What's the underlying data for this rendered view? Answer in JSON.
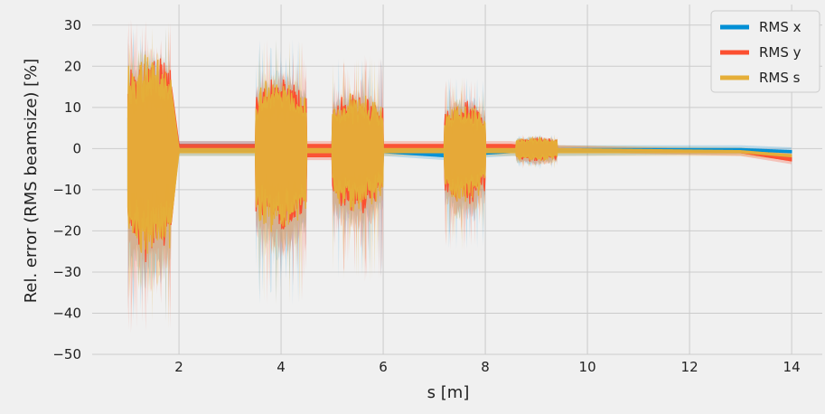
{
  "chart_data": {
    "type": "line",
    "xlabel": "s [m]",
    "ylabel": "Rel. error (RMS beamsize) [%]",
    "xlim": [
      0.3,
      14.6
    ],
    "ylim": [
      -50,
      35
    ],
    "x_ticks": [
      2,
      4,
      6,
      8,
      10,
      12,
      14
    ],
    "y_ticks": [
      -50,
      -40,
      -30,
      -20,
      -10,
      0,
      10,
      20,
      30
    ],
    "grid": true,
    "legend_position": "top-right",
    "series": [
      {
        "name": "RMS x",
        "color": "#008fd5",
        "envelope": [
          {
            "s": 1.0,
            "lo": -5,
            "hi": 2
          },
          {
            "s": 1.8,
            "lo": -10,
            "hi": 2
          },
          {
            "s": 2.0,
            "lo": -1,
            "hi": 1
          },
          {
            "s": 3.5,
            "lo": -1,
            "hi": 1
          },
          {
            "s": 4.5,
            "lo": -1,
            "hi": 0
          },
          {
            "s": 5.0,
            "lo": -1,
            "hi": 0
          },
          {
            "s": 6.0,
            "lo": -1,
            "hi": 0
          },
          {
            "s": 7.2,
            "lo": -2,
            "hi": 0
          },
          {
            "s": 8.5,
            "lo": -1,
            "hi": 0
          },
          {
            "s": 9.4,
            "lo": -1,
            "hi": 0
          },
          {
            "s": 13.0,
            "lo": -0.5,
            "hi": 0
          },
          {
            "s": 14.0,
            "lo": -1,
            "hi": -0.5
          }
        ]
      },
      {
        "name": "RMS y",
        "color": "#fc4f30",
        "envelope": [
          {
            "s": 1.0,
            "lo": -26,
            "hi": 21
          },
          {
            "s": 1.8,
            "lo": -24,
            "hi": 20
          },
          {
            "s": 2.0,
            "lo": 0,
            "hi": 1
          },
          {
            "s": 3.5,
            "lo": 0,
            "hi": 1
          },
          {
            "s": 4.5,
            "lo": -2,
            "hi": 1
          },
          {
            "s": 5.0,
            "lo": -2,
            "hi": 1
          },
          {
            "s": 6.0,
            "lo": 0,
            "hi": 1
          },
          {
            "s": 7.2,
            "lo": 0,
            "hi": 1
          },
          {
            "s": 8.5,
            "lo": 0,
            "hi": 1
          },
          {
            "s": 9.4,
            "lo": 0,
            "hi": 0
          },
          {
            "s": 13.0,
            "lo": -1,
            "hi": -1
          },
          {
            "s": 14.0,
            "lo": -3,
            "hi": -2
          }
        ]
      },
      {
        "name": "RMS s",
        "color": "#e5ae38",
        "envelope": [
          {
            "s": 1.0,
            "lo": -26,
            "hi": 21
          },
          {
            "s": 1.8,
            "lo": -23,
            "hi": 19
          },
          {
            "s": 2.0,
            "lo": -1,
            "hi": 0
          },
          {
            "s": 3.5,
            "lo": -1,
            "hi": 0
          },
          {
            "s": 4.5,
            "lo": -1,
            "hi": 0
          },
          {
            "s": 5.0,
            "lo": -1,
            "hi": 0
          },
          {
            "s": 6.0,
            "lo": -1,
            "hi": 0
          },
          {
            "s": 7.2,
            "lo": -1,
            "hi": 0
          },
          {
            "s": 8.5,
            "lo": -1,
            "hi": 0
          },
          {
            "s": 9.4,
            "lo": -1,
            "hi": 0
          },
          {
            "s": 13.0,
            "lo": -1,
            "hi": -0.5
          },
          {
            "s": 14.0,
            "lo": -2,
            "hi": -1.5
          }
        ]
      }
    ],
    "oscillation_regions": [
      {
        "s_start": 1.0,
        "s_end": 1.85,
        "amp_max": 26,
        "amp_min": 18,
        "band_max": 45
      },
      {
        "s_start": 3.5,
        "s_end": 4.5,
        "amp_max": 20,
        "amp_min": 10,
        "band_max": 38
      },
      {
        "s_start": 5.0,
        "s_end": 6.0,
        "amp_max": 15,
        "amp_min": 8,
        "band_max": 33
      },
      {
        "s_start": 7.2,
        "s_end": 8.0,
        "amp_max": 13,
        "amp_min": 6,
        "band_max": 25
      },
      {
        "s_start": 8.6,
        "s_end": 9.4,
        "amp_max": 3,
        "amp_min": 2,
        "band_max": 5
      }
    ]
  }
}
